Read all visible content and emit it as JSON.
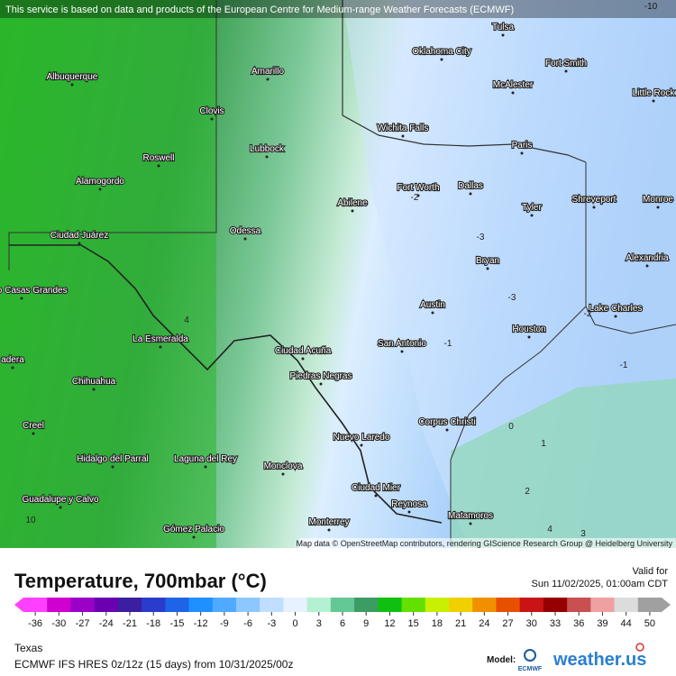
{
  "map": {
    "notice": "This service is based on data and products of the European Centre for Medium-range Weather Forecasts (ECMWF)",
    "credit": "Map data © OpenStreetMap contributors, rendering GIScience Research Group @ Heidelberg University",
    "cities": [
      "Tulsa",
      "Oklahoma City",
      "Fort Smith",
      "McAlester",
      "Little Rock",
      "Amarillo",
      "Albuquerque",
      "Clovis",
      "Wichita Falls",
      "Paris",
      "Lubbock",
      "Roswell",
      "Alamogordo",
      "Fort Worth",
      "Dallas",
      "Shreveport",
      "Monroe",
      "Abilene",
      "Tyler",
      "Ciudad Juárez",
      "Odessa",
      "Alexandria",
      "Nuevo Casas Grandes",
      "Bryan",
      "Austin",
      "Lake Charles",
      "La Esmeralda",
      "Ciudad Acuña",
      "San Antonio",
      "Houston",
      "Piedras Negras",
      "adera",
      "Chihuahua",
      "Corpus Christi",
      "Creel",
      "Nuevo Laredo",
      "Hidalgo del Parral",
      "Laguna del Rey",
      "Monclova",
      "Ciudad Mier",
      "Reynosa",
      "Matamoros",
      "Guadalupe y Calvo",
      "Monterrey",
      "Gómez Palacio"
    ],
    "contour_labels": [
      -10,
      -3,
      -2,
      -3,
      -2,
      -1,
      -1,
      0,
      1,
      2,
      4,
      3,
      4,
      10
    ]
  },
  "legend": {
    "title": "Temperature, 700mbar (°C)",
    "valid_label": "Valid for",
    "valid_time": "Sun 11/02/2025, 01:00am CDT",
    "ticks": [
      -36,
      -30,
      -27,
      -24,
      -21,
      -18,
      -15,
      -12,
      -9,
      -6,
      -3,
      0,
      3,
      6,
      9,
      12,
      15,
      18,
      21,
      24,
      27,
      30,
      33,
      36,
      39,
      44,
      50
    ],
    "colors": [
      "#ff40ff",
      "#d000d0",
      "#9a00c8",
      "#6a00b0",
      "#3c1ea0",
      "#2a3ccc",
      "#1e64e6",
      "#1e90ff",
      "#50aaff",
      "#8cc8ff",
      "#c0deff",
      "#e6f2ff",
      "#b4f0d2",
      "#64c896",
      "#3c9c64",
      "#10c010",
      "#64e000",
      "#c8f000",
      "#f0d000",
      "#f09000",
      "#e85000",
      "#c81414",
      "#960000",
      "#c85050",
      "#f0a0a0",
      "#dcdcdc",
      "#a0a0a0"
    ]
  },
  "footer": {
    "region": "Texas",
    "model_run": "ECMWF IFS HRES 0z/12z (15 days) from 10/31/2025/00z",
    "model_label": "Model:",
    "model_logo": "ECMWF",
    "brand": "weather.us"
  }
}
